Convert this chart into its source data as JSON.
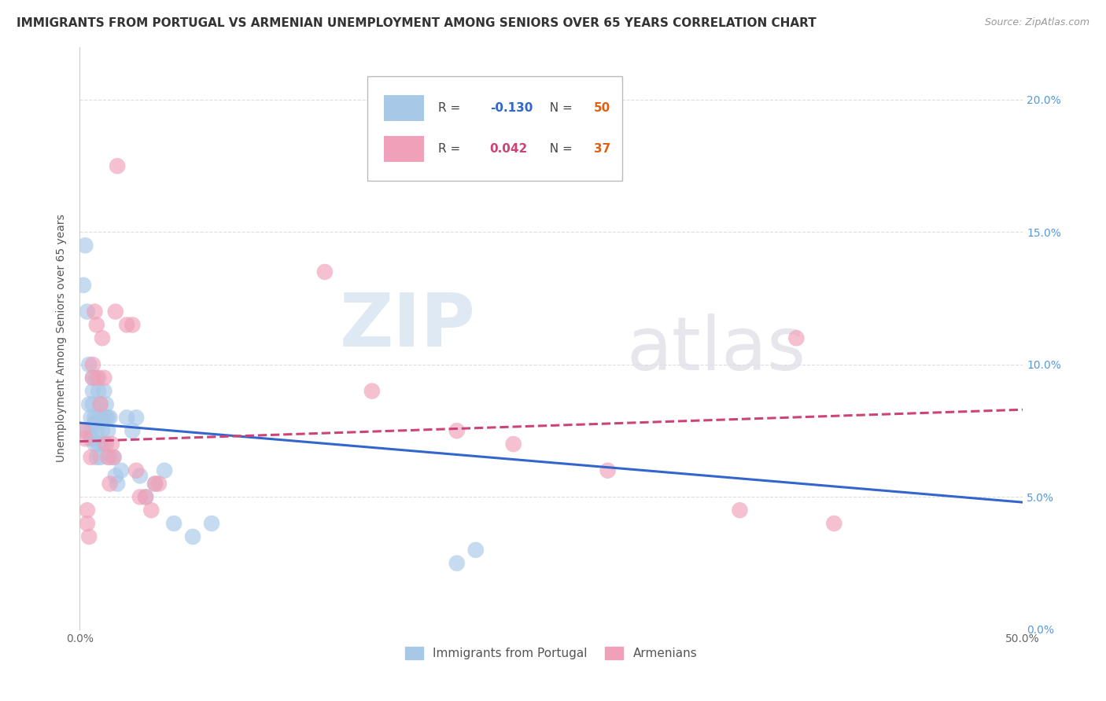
{
  "title": "IMMIGRANTS FROM PORTUGAL VS ARMENIAN UNEMPLOYMENT AMONG SENIORS OVER 65 YEARS CORRELATION CHART",
  "source": "Source: ZipAtlas.com",
  "ylabel": "Unemployment Among Seniors over 65 years",
  "xlim": [
    0.0,
    0.5
  ],
  "ylim": [
    0.0,
    0.22
  ],
  "xtick_vals": [
    0.0,
    0.5
  ],
  "xticklabels": [
    "0.0%",
    "50.0%"
  ],
  "ytick_vals": [
    0.0,
    0.05,
    0.1,
    0.15,
    0.2
  ],
  "yticklabels_right": [
    "0.0%",
    "5.0%",
    "10.0%",
    "15.0%",
    "20.0%"
  ],
  "portugal_color": "#a8c8e8",
  "armenian_color": "#f0a0b8",
  "portugal_line_color": "#3366cc",
  "armenian_line_color": "#cc4477",
  "portugal_R": "-0.130",
  "portugal_N": "50",
  "armenian_R": "0.042",
  "armenian_N": "37",
  "R_color_portugal": "#3366cc",
  "R_color_armenian": "#cc4477",
  "N_color": "#e06010",
  "legend_label_portugal": "Immigrants from Portugal",
  "legend_label_armenian": "Armenians",
  "portugal_scatter": [
    [
      0.002,
      0.13
    ],
    [
      0.003,
      0.145
    ],
    [
      0.004,
      0.075
    ],
    [
      0.004,
      0.12
    ],
    [
      0.005,
      0.085
    ],
    [
      0.005,
      0.1
    ],
    [
      0.006,
      0.08
    ],
    [
      0.006,
      0.075
    ],
    [
      0.006,
      0.072
    ],
    [
      0.007,
      0.095
    ],
    [
      0.007,
      0.09
    ],
    [
      0.007,
      0.085
    ],
    [
      0.008,
      0.08
    ],
    [
      0.008,
      0.078
    ],
    [
      0.008,
      0.07
    ],
    [
      0.009,
      0.095
    ],
    [
      0.009,
      0.075
    ],
    [
      0.009,
      0.065
    ],
    [
      0.01,
      0.09
    ],
    [
      0.01,
      0.08
    ],
    [
      0.01,
      0.07
    ],
    [
      0.011,
      0.085
    ],
    [
      0.011,
      0.07
    ],
    [
      0.011,
      0.065
    ],
    [
      0.012,
      0.08
    ],
    [
      0.012,
      0.075
    ],
    [
      0.013,
      0.09
    ],
    [
      0.013,
      0.07
    ],
    [
      0.014,
      0.085
    ],
    [
      0.014,
      0.08
    ],
    [
      0.015,
      0.08
    ],
    [
      0.015,
      0.075
    ],
    [
      0.016,
      0.08
    ],
    [
      0.016,
      0.065
    ],
    [
      0.018,
      0.065
    ],
    [
      0.019,
      0.058
    ],
    [
      0.02,
      0.055
    ],
    [
      0.022,
      0.06
    ],
    [
      0.025,
      0.08
    ],
    [
      0.028,
      0.075
    ],
    [
      0.03,
      0.08
    ],
    [
      0.032,
      0.058
    ],
    [
      0.035,
      0.05
    ],
    [
      0.04,
      0.055
    ],
    [
      0.045,
      0.06
    ],
    [
      0.05,
      0.04
    ],
    [
      0.06,
      0.035
    ],
    [
      0.07,
      0.04
    ],
    [
      0.2,
      0.025
    ],
    [
      0.21,
      0.03
    ]
  ],
  "armenian_scatter": [
    [
      0.002,
      0.075
    ],
    [
      0.003,
      0.072
    ],
    [
      0.004,
      0.045
    ],
    [
      0.004,
      0.04
    ],
    [
      0.005,
      0.035
    ],
    [
      0.006,
      0.065
    ],
    [
      0.007,
      0.095
    ],
    [
      0.007,
      0.1
    ],
    [
      0.008,
      0.12
    ],
    [
      0.009,
      0.115
    ],
    [
      0.01,
      0.095
    ],
    [
      0.011,
      0.085
    ],
    [
      0.012,
      0.11
    ],
    [
      0.013,
      0.095
    ],
    [
      0.014,
      0.07
    ],
    [
      0.015,
      0.065
    ],
    [
      0.016,
      0.055
    ],
    [
      0.017,
      0.07
    ],
    [
      0.018,
      0.065
    ],
    [
      0.019,
      0.12
    ],
    [
      0.02,
      0.175
    ],
    [
      0.025,
      0.115
    ],
    [
      0.028,
      0.115
    ],
    [
      0.03,
      0.06
    ],
    [
      0.032,
      0.05
    ],
    [
      0.035,
      0.05
    ],
    [
      0.038,
      0.045
    ],
    [
      0.04,
      0.055
    ],
    [
      0.042,
      0.055
    ],
    [
      0.13,
      0.135
    ],
    [
      0.155,
      0.09
    ],
    [
      0.2,
      0.075
    ],
    [
      0.23,
      0.07
    ],
    [
      0.28,
      0.06
    ],
    [
      0.35,
      0.045
    ],
    [
      0.38,
      0.11
    ],
    [
      0.4,
      0.04
    ]
  ],
  "portugal_trend_x": [
    0.0,
    0.5
  ],
  "portugal_trend_y": [
    0.078,
    0.048
  ],
  "armenian_trend_x": [
    0.0,
    0.5
  ],
  "armenian_trend_y": [
    0.071,
    0.083
  ],
  "watermark_zip": "ZIP",
  "watermark_atlas": "atlas",
  "background_color": "#ffffff",
  "grid_color": "#dddddd",
  "title_fontsize": 11,
  "axis_label_fontsize": 10,
  "tick_fontsize": 10,
  "legend_fontsize": 11
}
